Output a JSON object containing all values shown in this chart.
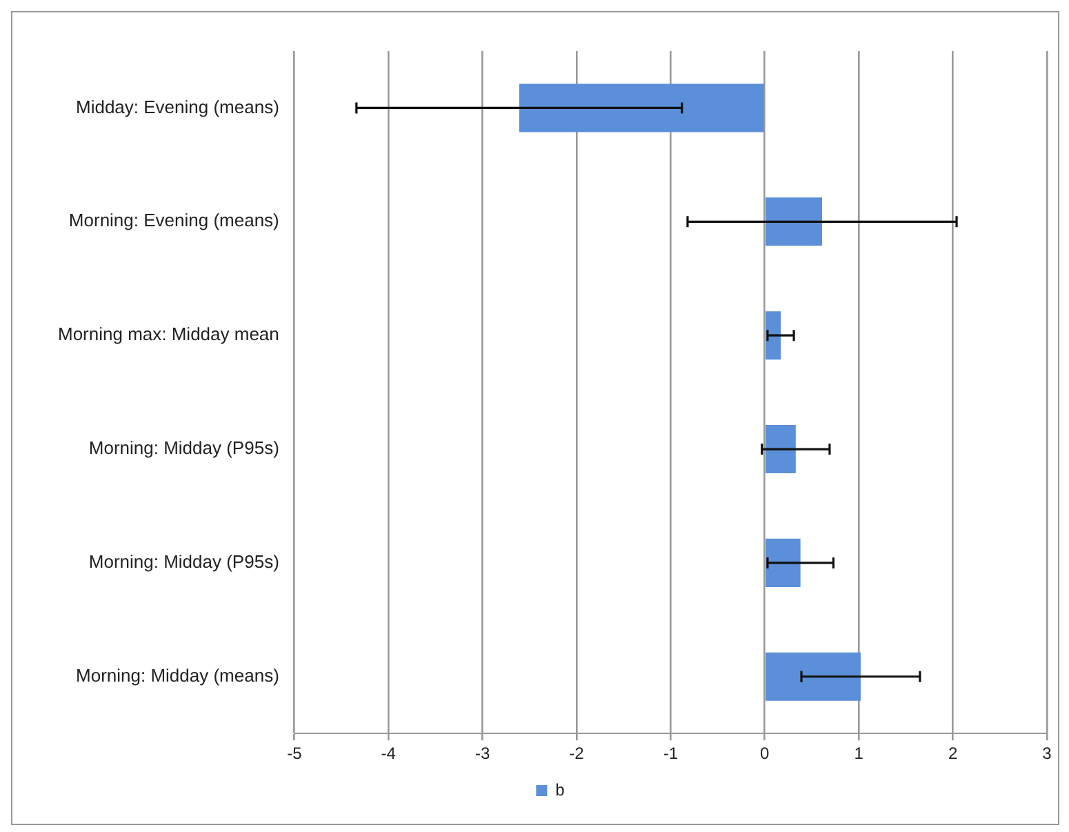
{
  "chart_data": {
    "type": "bar",
    "orientation": "horizontal",
    "categories": [
      "Midday: Evening (means)",
      "Morning: Evening (means)",
      "Morning max: Midday mean",
      "Morning: Midday (P95s)",
      "Morning: Midday (P95s)",
      "Morning: Midday (means)"
    ],
    "series": [
      {
        "name": "b",
        "color": "#5b8fd9",
        "values": [
          -2.61,
          0.61,
          0.17,
          0.33,
          0.38,
          1.02
        ],
        "errors": [
          1.73,
          1.43,
          0.14,
          0.36,
          0.35,
          0.63
        ]
      }
    ],
    "xlim": [
      -5,
      3
    ],
    "xticks": [
      -5,
      -4,
      -3,
      -2,
      -1,
      0,
      1,
      2,
      3
    ],
    "grid": "x",
    "legend": "bottom"
  }
}
